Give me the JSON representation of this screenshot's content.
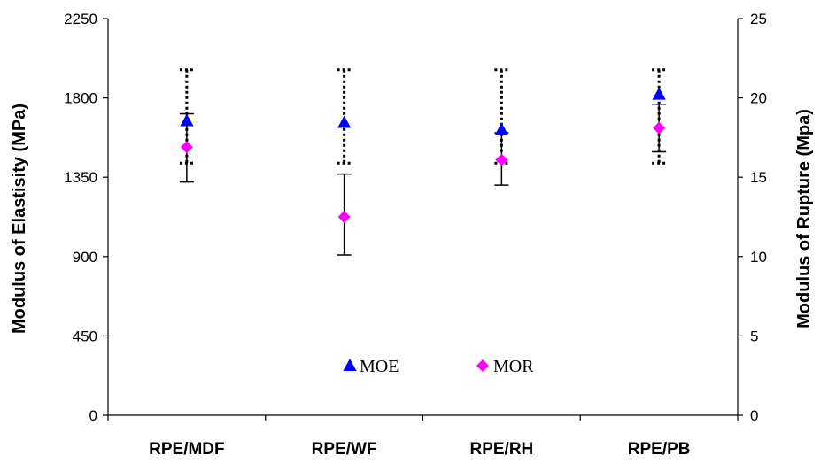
{
  "chart_data": {
    "type": "scatter",
    "categories": [
      "RPE/MDF",
      "RPE/WF",
      "RPE/RH",
      "RPE/PB"
    ],
    "left_axis": {
      "label": "Modulus of Elastisity (MPa)",
      "ylim": [
        0,
        2250
      ],
      "ticks": [
        0,
        450,
        900,
        1350,
        1800,
        2250
      ]
    },
    "right_axis": {
      "label": "Modulus of Rupture (Mpa)",
      "ylim": [
        0,
        25
      ],
      "ticks": [
        0,
        5,
        10,
        15,
        20,
        25
      ]
    },
    "series": [
      {
        "name": "MOE",
        "axis": "left",
        "marker": "triangle",
        "color": "#0000ff",
        "values": [
          1670,
          1660,
          1620,
          1820
        ],
        "error_low": [
          1430,
          1430,
          1430,
          1430
        ],
        "error_high": [
          1960,
          1960,
          1960,
          1960
        ],
        "error_style": "dotted"
      },
      {
        "name": "MOR",
        "axis": "right",
        "marker": "diamond",
        "color": "#ff00ff",
        "values": [
          16.9,
          12.5,
          16.1,
          18.1
        ],
        "error_low": [
          14.7,
          10.1,
          14.5,
          16.6
        ],
        "error_high": [
          19.0,
          15.2,
          17.8,
          19.6
        ],
        "error_style": "solid"
      }
    ],
    "legend": {
      "placement": "bottom-center",
      "entries": [
        "MOE",
        "MOR"
      ]
    },
    "grid": false
  }
}
